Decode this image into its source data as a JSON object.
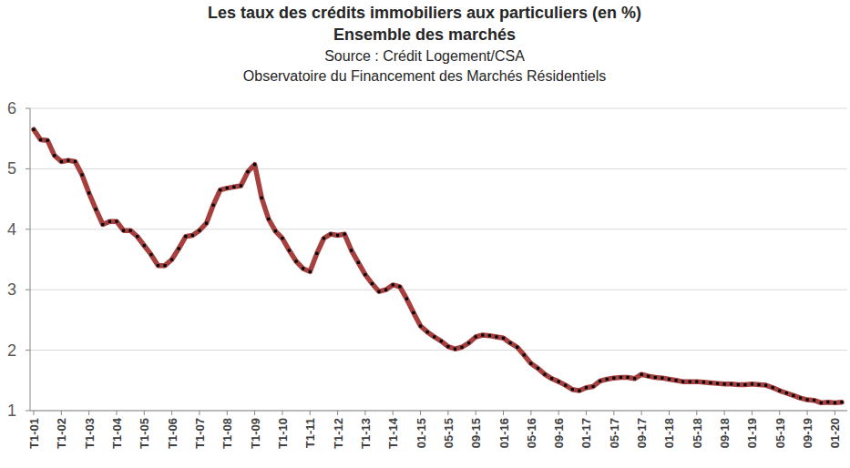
{
  "chart_data": {
    "type": "line",
    "title": "Les taux des crédits immobiliers aux particuliers (en %)",
    "subtitle": "Ensemble des marchés",
    "source_lines": [
      "Source : Crédit Logement/CSA",
      "Observatoire du Financement des Marchés Résidentiels"
    ],
    "categories": [
      "T1-01",
      null,
      null,
      null,
      "T1-02",
      null,
      null,
      null,
      "T1-03",
      null,
      null,
      null,
      "T1-04",
      null,
      null,
      null,
      "T1-05",
      null,
      null,
      null,
      "T1-06",
      null,
      null,
      null,
      "T1-07",
      null,
      null,
      null,
      "T1-08",
      null,
      null,
      null,
      "T1-09",
      null,
      null,
      null,
      "T1-10",
      null,
      null,
      null,
      "T1-11",
      null,
      null,
      null,
      "T1-12",
      null,
      null,
      null,
      "T1-13",
      null,
      null,
      null,
      "T1-14",
      null,
      null,
      null,
      "01-15",
      null,
      null,
      null,
      "05-15",
      null,
      null,
      null,
      "09-15",
      null,
      null,
      null,
      "01-16",
      null,
      null,
      null,
      "05-16",
      null,
      null,
      null,
      "09-16",
      null,
      null,
      null,
      "01-17",
      null,
      null,
      null,
      "05-17",
      null,
      null,
      null,
      "09-17",
      null,
      null,
      null,
      "01-18",
      null,
      null,
      null,
      "05-18",
      null,
      null,
      null,
      "09-18",
      null,
      null,
      null,
      "01-19",
      null,
      null,
      null,
      "05-19",
      null,
      null,
      null,
      "09-19",
      null,
      null,
      null,
      "01-20",
      null
    ],
    "values": [
      5.65,
      5.48,
      5.47,
      5.22,
      5.12,
      5.14,
      5.12,
      4.9,
      4.6,
      4.33,
      4.08,
      4.13,
      4.13,
      3.98,
      3.98,
      3.88,
      3.73,
      3.58,
      3.4,
      3.4,
      3.5,
      3.68,
      3.88,
      3.9,
      3.98,
      4.1,
      4.4,
      4.65,
      4.68,
      4.7,
      4.72,
      4.95,
      5.07,
      4.52,
      4.17,
      3.97,
      3.85,
      3.65,
      3.47,
      3.35,
      3.3,
      3.6,
      3.85,
      3.92,
      3.9,
      3.92,
      3.65,
      3.45,
      3.25,
      3.1,
      2.97,
      3.0,
      3.08,
      3.05,
      2.85,
      2.62,
      2.4,
      2.3,
      2.22,
      2.15,
      2.06,
      2.02,
      2.05,
      2.12,
      2.22,
      2.25,
      2.24,
      2.22,
      2.2,
      2.12,
      2.05,
      1.92,
      1.78,
      1.7,
      1.6,
      1.53,
      1.48,
      1.42,
      1.35,
      1.33,
      1.38,
      1.4,
      1.49,
      1.52,
      1.54,
      1.55,
      1.55,
      1.53,
      1.6,
      1.57,
      1.55,
      1.54,
      1.52,
      1.5,
      1.48,
      1.48,
      1.48,
      1.47,
      1.46,
      1.45,
      1.44,
      1.44,
      1.43,
      1.43,
      1.44,
      1.43,
      1.42,
      1.38,
      1.33,
      1.29,
      1.25,
      1.21,
      1.18,
      1.17,
      1.13,
      1.14,
      1.13,
      1.14
    ],
    "color": "#a5403e",
    "marker": "square",
    "ylim": [
      1,
      6
    ],
    "yticks": [
      1,
      2,
      3,
      4,
      5,
      6
    ],
    "grid": true
  }
}
